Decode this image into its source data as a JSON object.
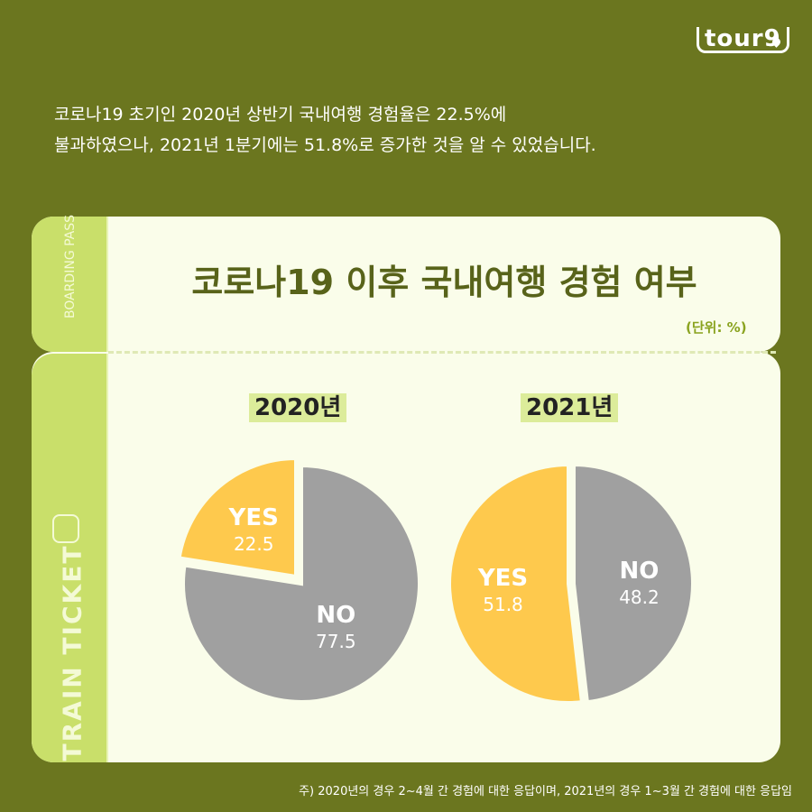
{
  "logo": "tour9",
  "intro": [
    "코로나19 초기인 2020년 상반기 국내여행 경험율은 22.5%에",
    "불과하였으나, 2021년 1분기에는 51.8%로 증가한 것을 알 수 있었습니다."
  ],
  "ticket": {
    "boarding": "BOARDING PASS",
    "train": "TRAIN TICKET"
  },
  "colors": {
    "yes": "#fec94d",
    "no": "#a0a0a0",
    "background": "#6b761f"
  },
  "chart_data": [
    {
      "type": "pie",
      "title": "2020년",
      "slices": [
        {
          "label": "YES",
          "value": 22.5
        },
        {
          "label": "NO",
          "value": 77.5
        }
      ]
    },
    {
      "type": "pie",
      "title": "2021년",
      "slices": [
        {
          "label": "YES",
          "value": 51.8
        },
        {
          "label": "NO",
          "value": 48.2
        }
      ]
    }
  ],
  "chart_title": "코로나19 이후 국내여행 경험 여부",
  "unit": "(단위: %)",
  "note": "주) 2020년의 경우 2~4월 간 경험에 대한 응답이며, 2021년의 경우 1~3월 간 경험에 대한 응답임"
}
